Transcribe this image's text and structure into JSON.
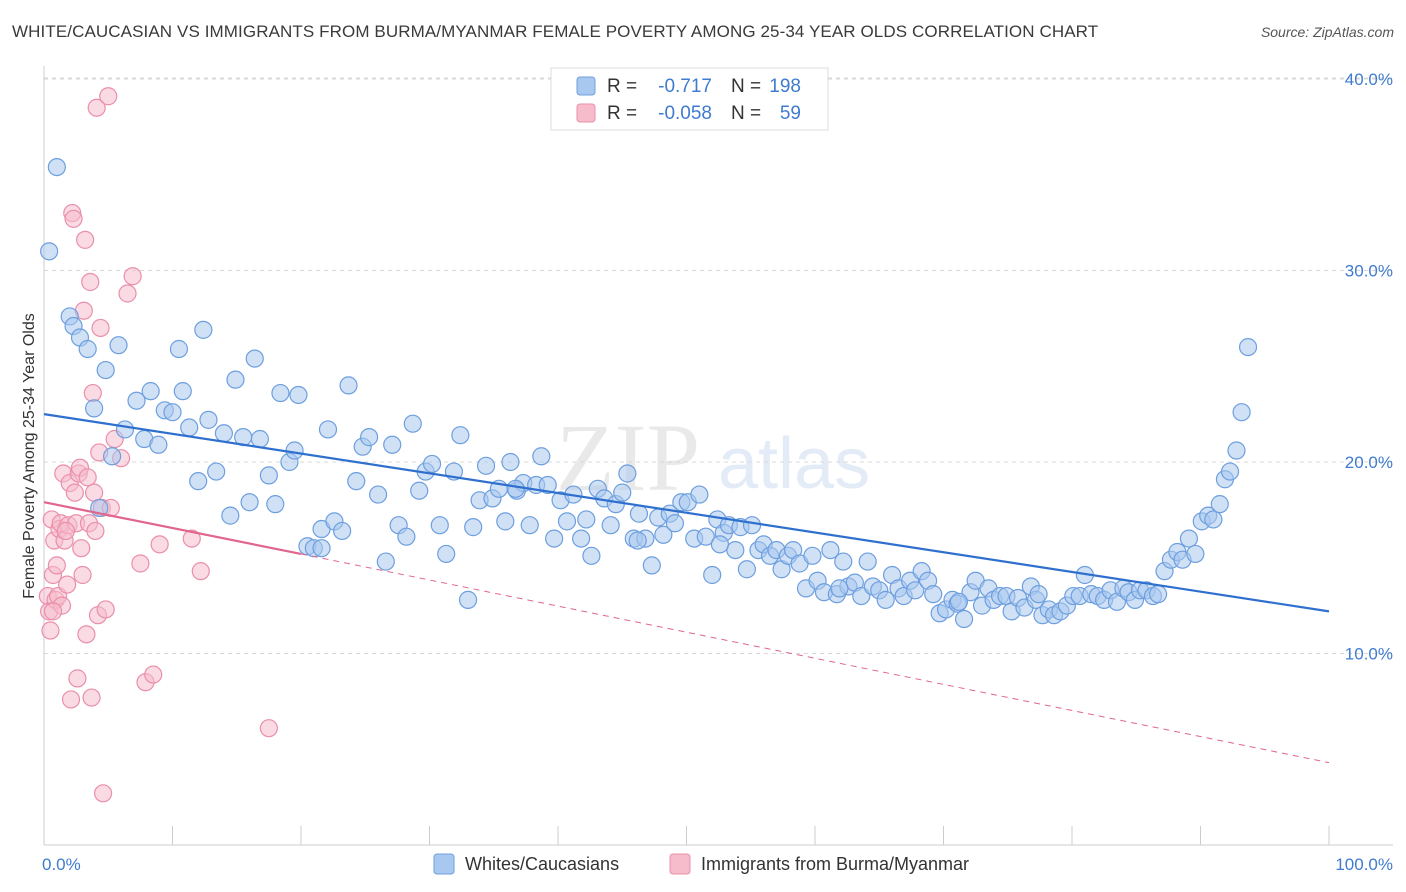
{
  "title": "WHITE/CAUCASIAN VS IMMIGRANTS FROM BURMA/MYANMAR FEMALE POVERTY AMONG 25-34 YEAR OLDS CORRELATION CHART",
  "source": "Source: ZipAtlas.com",
  "watermark": {
    "zip": "ZIP",
    "atlas": "atlas"
  },
  "colors": {
    "blue_fill": "#a9c8ef",
    "blue_stroke": "#6d9fdf",
    "blue_line": "#2f70cf",
    "pink_fill": "#f6bccc",
    "pink_stroke": "#ea8fab",
    "pink_line": "#e0668d",
    "axis_text": "#3f7bd0",
    "grid": "#d8d8d8"
  },
  "legend_box": {
    "rows": [
      {
        "r_label": "R =",
        "r_value": "-0.717",
        "n_label": "N =",
        "n_value": "198"
      },
      {
        "r_label": "R =",
        "r_value": "-0.058",
        "n_label": "N =",
        "n_value": "59"
      }
    ]
  },
  "chart_data": {
    "type": "scatter",
    "xlabel": "",
    "ylabel": "Female Poverty Among 25-34 Year Olds",
    "xlim": [
      0,
      100
    ],
    "ylim": [
      0,
      42
    ],
    "x_tick_labels": [
      "0.0%",
      "100.0%"
    ],
    "y_ticks": [
      10,
      20,
      30,
      40
    ],
    "y_tick_labels": [
      "10.0%",
      "20.0%",
      "30.0%",
      "40.0%"
    ],
    "grid": true,
    "legend_placement": "bottom-center",
    "series": [
      {
        "name": "Whites/Caucasians",
        "r": -0.717,
        "n": 198,
        "trend": {
          "x0": 0,
          "y0": 22.5,
          "x1": 100,
          "y1": 12.2
        },
        "points": [
          [
            0.4,
            31.0
          ],
          [
            1.0,
            35.4
          ],
          [
            2.0,
            27.6
          ],
          [
            2.3,
            27.1
          ],
          [
            2.8,
            26.5
          ],
          [
            3.4,
            25.9
          ],
          [
            3.9,
            22.8
          ],
          [
            4.3,
            17.6
          ],
          [
            4.8,
            24.8
          ],
          [
            5.3,
            20.3
          ],
          [
            5.8,
            26.1
          ],
          [
            6.3,
            21.7
          ],
          [
            7.2,
            23.2
          ],
          [
            7.8,
            21.2
          ],
          [
            8.3,
            23.7
          ],
          [
            8.9,
            20.9
          ],
          [
            9.4,
            22.7
          ],
          [
            10.0,
            22.6
          ],
          [
            10.5,
            25.9
          ],
          [
            10.8,
            23.7
          ],
          [
            11.3,
            21.8
          ],
          [
            12.0,
            19.0
          ],
          [
            12.4,
            26.9
          ],
          [
            12.8,
            22.2
          ],
          [
            13.4,
            19.5
          ],
          [
            14.0,
            21.5
          ],
          [
            14.5,
            17.2
          ],
          [
            14.9,
            24.3
          ],
          [
            15.5,
            21.3
          ],
          [
            16.0,
            17.9
          ],
          [
            16.4,
            25.4
          ],
          [
            16.8,
            21.2
          ],
          [
            17.5,
            19.3
          ],
          [
            18.0,
            17.8
          ],
          [
            18.4,
            23.6
          ],
          [
            19.1,
            20.0
          ],
          [
            19.5,
            20.6
          ],
          [
            19.8,
            23.5
          ],
          [
            20.5,
            15.6
          ],
          [
            21.0,
            15.5
          ],
          [
            21.6,
            16.5
          ],
          [
            22.1,
            21.7
          ],
          [
            22.6,
            16.9
          ],
          [
            23.2,
            16.4
          ],
          [
            23.7,
            24.0
          ],
          [
            24.3,
            19.0
          ],
          [
            24.8,
            20.8
          ],
          [
            25.3,
            21.3
          ],
          [
            26.0,
            18.3
          ],
          [
            26.6,
            14.8
          ],
          [
            27.1,
            20.9
          ],
          [
            27.6,
            16.7
          ],
          [
            28.2,
            16.1
          ],
          [
            28.7,
            22.0
          ],
          [
            29.2,
            18.5
          ],
          [
            29.7,
            19.5
          ],
          [
            30.2,
            19.9
          ],
          [
            30.8,
            16.7
          ],
          [
            31.3,
            15.2
          ],
          [
            31.9,
            19.5
          ],
          [
            32.4,
            21.4
          ],
          [
            33.0,
            12.8
          ],
          [
            33.4,
            16.6
          ],
          [
            33.9,
            18.0
          ],
          [
            34.4,
            19.8
          ],
          [
            34.9,
            18.1
          ],
          [
            35.4,
            18.6
          ],
          [
            35.9,
            16.9
          ],
          [
            36.3,
            20.0
          ],
          [
            36.8,
            18.5
          ],
          [
            37.3,
            18.9
          ],
          [
            37.8,
            16.7
          ],
          [
            38.3,
            18.8
          ],
          [
            38.7,
            20.3
          ],
          [
            39.2,
            18.8
          ],
          [
            39.7,
            16.0
          ],
          [
            40.2,
            18.0
          ],
          [
            40.7,
            16.9
          ],
          [
            41.2,
            18.3
          ],
          [
            41.8,
            16.0
          ],
          [
            42.2,
            17.0
          ],
          [
            42.6,
            15.1
          ],
          [
            43.1,
            18.6
          ],
          [
            43.6,
            18.1
          ],
          [
            44.1,
            16.7
          ],
          [
            44.5,
            17.8
          ],
          [
            45.0,
            18.4
          ],
          [
            45.4,
            19.4
          ],
          [
            45.9,
            16.0
          ],
          [
            46.3,
            17.3
          ],
          [
            46.8,
            16.0
          ],
          [
            47.3,
            14.6
          ],
          [
            47.8,
            17.1
          ],
          [
            48.2,
            16.2
          ],
          [
            48.7,
            17.3
          ],
          [
            49.1,
            16.8
          ],
          [
            49.6,
            17.9
          ],
          [
            50.1,
            17.9
          ],
          [
            50.6,
            16.0
          ],
          [
            51.0,
            18.3
          ],
          [
            51.5,
            16.1
          ],
          [
            52.0,
            14.1
          ],
          [
            52.4,
            17.0
          ],
          [
            52.9,
            16.3
          ],
          [
            53.3,
            16.7
          ],
          [
            53.8,
            15.4
          ],
          [
            54.2,
            16.6
          ],
          [
            54.7,
            14.4
          ],
          [
            55.1,
            16.7
          ],
          [
            55.6,
            15.4
          ],
          [
            56.0,
            15.7
          ],
          [
            56.5,
            15.1
          ],
          [
            57.0,
            15.4
          ],
          [
            57.4,
            14.4
          ],
          [
            57.9,
            15.1
          ],
          [
            58.3,
            15.4
          ],
          [
            58.8,
            14.7
          ],
          [
            59.3,
            13.4
          ],
          [
            59.8,
            15.1
          ],
          [
            60.2,
            13.8
          ],
          [
            60.7,
            13.2
          ],
          [
            61.2,
            15.4
          ],
          [
            61.7,
            13.1
          ],
          [
            62.2,
            14.8
          ],
          [
            62.6,
            13.5
          ],
          [
            63.1,
            13.7
          ],
          [
            63.6,
            13.0
          ],
          [
            64.1,
            14.8
          ],
          [
            64.5,
            13.5
          ],
          [
            65.0,
            13.3
          ],
          [
            65.5,
            12.8
          ],
          [
            66.0,
            14.1
          ],
          [
            66.5,
            13.4
          ],
          [
            66.9,
            13.0
          ],
          [
            67.4,
            13.8
          ],
          [
            67.8,
            13.3
          ],
          [
            68.3,
            14.3
          ],
          [
            68.8,
            13.8
          ],
          [
            69.2,
            13.1
          ],
          [
            69.7,
            12.1
          ],
          [
            70.2,
            12.3
          ],
          [
            70.7,
            12.8
          ],
          [
            71.1,
            12.6
          ],
          [
            71.6,
            11.8
          ],
          [
            72.1,
            13.2
          ],
          [
            72.5,
            13.8
          ],
          [
            73.0,
            12.5
          ],
          [
            73.5,
            13.4
          ],
          [
            73.9,
            12.8
          ],
          [
            74.4,
            13.0
          ],
          [
            74.9,
            13.0
          ],
          [
            75.3,
            12.2
          ],
          [
            75.8,
            12.9
          ],
          [
            76.3,
            12.4
          ],
          [
            76.8,
            13.5
          ],
          [
            77.2,
            12.8
          ],
          [
            77.7,
            12.0
          ],
          [
            78.2,
            12.3
          ],
          [
            78.6,
            12.0
          ],
          [
            79.1,
            12.2
          ],
          [
            79.6,
            12.5
          ],
          [
            80.1,
            13.0
          ],
          [
            80.6,
            13.0
          ],
          [
            81.0,
            14.1
          ],
          [
            81.5,
            13.1
          ],
          [
            82.0,
            13.0
          ],
          [
            82.5,
            12.8
          ],
          [
            83.0,
            13.3
          ],
          [
            83.5,
            12.7
          ],
          [
            84.0,
            13.4
          ],
          [
            84.4,
            13.2
          ],
          [
            84.9,
            12.8
          ],
          [
            85.3,
            13.3
          ],
          [
            85.8,
            13.3
          ],
          [
            86.3,
            13.0
          ],
          [
            86.7,
            13.1
          ],
          [
            87.2,
            14.3
          ],
          [
            87.7,
            14.9
          ],
          [
            88.2,
            15.3
          ],
          [
            88.6,
            14.9
          ],
          [
            89.1,
            16.0
          ],
          [
            89.6,
            15.2
          ],
          [
            90.1,
            16.9
          ],
          [
            90.6,
            17.2
          ],
          [
            91.0,
            17.0
          ],
          [
            91.5,
            17.8
          ],
          [
            91.9,
            19.1
          ],
          [
            92.3,
            19.5
          ],
          [
            92.8,
            20.6
          ],
          [
            93.2,
            22.6
          ],
          [
            93.7,
            26.0
          ],
          [
            21.6,
            15.5
          ],
          [
            36.7,
            18.6
          ],
          [
            46.2,
            15.9
          ],
          [
            52.6,
            15.7
          ],
          [
            61.9,
            13.4
          ],
          [
            71.2,
            12.7
          ],
          [
            77.4,
            13.1
          ]
        ]
      },
      {
        "name": "Immigrants from Burma/Myanmar",
        "r": -0.058,
        "n": 59,
        "trend": {
          "x0": 0,
          "y0": 17.9,
          "x1": 20,
          "y1": 15.2
        },
        "trend_dashed": {
          "x0": 20,
          "y0": 15.2,
          "x1": 100,
          "y1": 4.3
        },
        "points": [
          [
            0.3,
            13.0
          ],
          [
            0.4,
            12.2
          ],
          [
            0.5,
            11.2
          ],
          [
            0.6,
            17.0
          ],
          [
            0.7,
            14.1
          ],
          [
            0.8,
            15.9
          ],
          [
            0.9,
            12.8
          ],
          [
            1.0,
            14.6
          ],
          [
            1.1,
            13.0
          ],
          [
            1.2,
            16.5
          ],
          [
            1.3,
            16.8
          ],
          [
            1.4,
            12.5
          ],
          [
            1.5,
            19.4
          ],
          [
            1.6,
            15.9
          ],
          [
            1.8,
            13.6
          ],
          [
            1.9,
            16.7
          ],
          [
            2.0,
            18.9
          ],
          [
            2.1,
            7.6
          ],
          [
            2.2,
            33.0
          ],
          [
            2.3,
            32.7
          ],
          [
            2.4,
            18.4
          ],
          [
            2.5,
            16.8
          ],
          [
            2.6,
            8.7
          ],
          [
            2.7,
            19.4
          ],
          [
            2.8,
            19.7
          ],
          [
            2.9,
            15.5
          ],
          [
            3.0,
            14.1
          ],
          [
            3.1,
            27.9
          ],
          [
            3.2,
            31.6
          ],
          [
            3.3,
            11.0
          ],
          [
            3.4,
            19.2
          ],
          [
            3.5,
            16.8
          ],
          [
            3.6,
            29.4
          ],
          [
            3.7,
            7.7
          ],
          [
            3.8,
            23.6
          ],
          [
            3.9,
            18.4
          ],
          [
            4.0,
            16.4
          ],
          [
            4.1,
            38.5
          ],
          [
            4.2,
            12.0
          ],
          [
            4.3,
            20.5
          ],
          [
            4.4,
            27.0
          ],
          [
            4.5,
            17.6
          ],
          [
            4.6,
            2.7
          ],
          [
            4.8,
            12.3
          ],
          [
            5.0,
            39.1
          ],
          [
            5.2,
            17.6
          ],
          [
            5.5,
            21.2
          ],
          [
            6.0,
            20.2
          ],
          [
            6.5,
            28.8
          ],
          [
            6.9,
            29.7
          ],
          [
            7.5,
            14.7
          ],
          [
            7.9,
            8.5
          ],
          [
            8.5,
            8.9
          ],
          [
            9.0,
            15.7
          ],
          [
            11.5,
            16.0
          ],
          [
            12.2,
            14.3
          ],
          [
            17.5,
            6.1
          ],
          [
            0.7,
            12.2
          ],
          [
            1.7,
            16.4
          ]
        ]
      }
    ]
  }
}
